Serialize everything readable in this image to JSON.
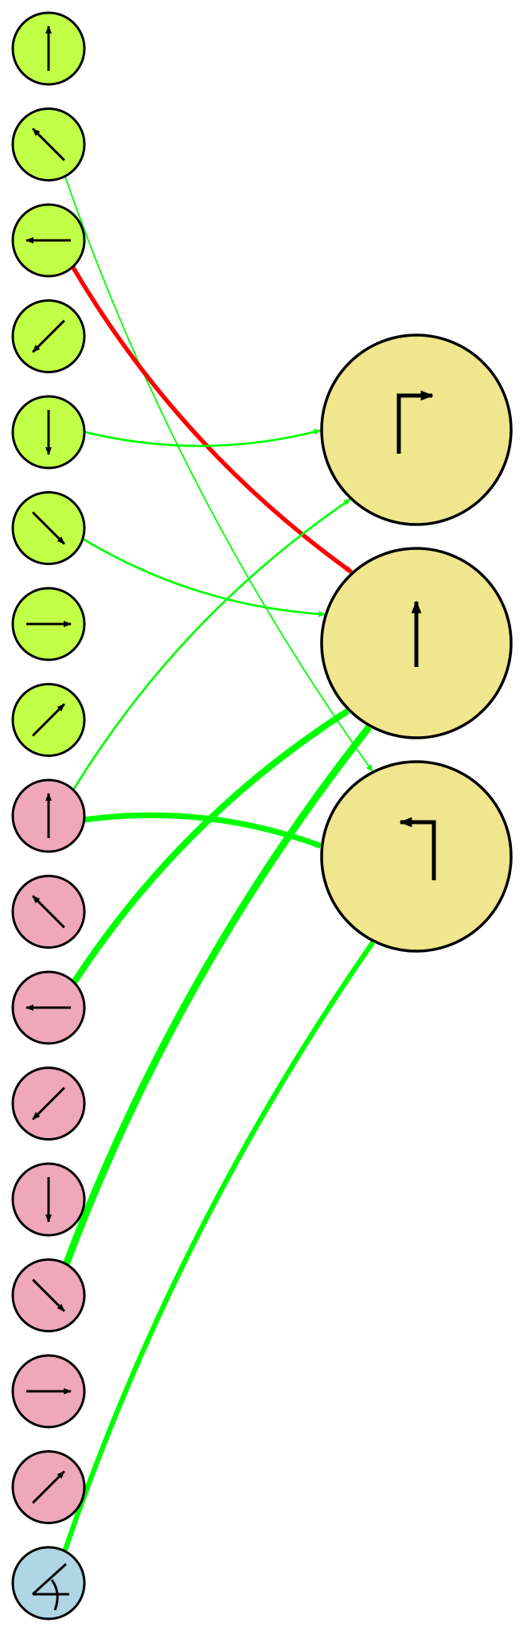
{
  "colors": {
    "background": "#ffffff",
    "input_direction": "#c2ff47",
    "input_pink": "#eea8b9",
    "input_blue": "#aed6e5",
    "output": "#efe68d",
    "stroke": "#000000",
    "edge_positive": "#00ff00",
    "edge_negative": "#ff0000"
  },
  "inputs": [
    {
      "id": "g0",
      "group": "direction",
      "icon": "arrow-up-icon"
    },
    {
      "id": "g1",
      "group": "direction",
      "icon": "arrow-up-left-icon"
    },
    {
      "id": "g2",
      "group": "direction",
      "icon": "arrow-left-icon"
    },
    {
      "id": "g3",
      "group": "direction",
      "icon": "arrow-down-left-icon"
    },
    {
      "id": "g4",
      "group": "direction",
      "icon": "arrow-down-icon"
    },
    {
      "id": "g5",
      "group": "direction",
      "icon": "arrow-down-right-icon"
    },
    {
      "id": "g6",
      "group": "direction",
      "icon": "arrow-right-icon"
    },
    {
      "id": "g7",
      "group": "direction",
      "icon": "arrow-up-right-icon"
    },
    {
      "id": "p0",
      "group": "pink",
      "icon": "arrow-up-icon"
    },
    {
      "id": "p1",
      "group": "pink",
      "icon": "arrow-up-left-icon"
    },
    {
      "id": "p2",
      "group": "pink",
      "icon": "arrow-left-icon"
    },
    {
      "id": "p3",
      "group": "pink",
      "icon": "arrow-down-left-icon"
    },
    {
      "id": "p4",
      "group": "pink",
      "icon": "arrow-down-icon"
    },
    {
      "id": "p5",
      "group": "pink",
      "icon": "arrow-down-right-icon"
    },
    {
      "id": "p6",
      "group": "pink",
      "icon": "arrow-right-icon"
    },
    {
      "id": "p7",
      "group": "pink",
      "icon": "arrow-up-right-icon"
    },
    {
      "id": "b0",
      "group": "blue",
      "icon": "angle-icon"
    }
  ],
  "outputs": [
    {
      "id": "o0",
      "icon": "turn-right-icon"
    },
    {
      "id": "o1",
      "icon": "straight-icon"
    },
    {
      "id": "o2",
      "icon": "turn-left-icon"
    }
  ],
  "edges": [
    {
      "from": "g1",
      "to": "o2",
      "sign": "positive",
      "weight": 1
    },
    {
      "from": "g2",
      "to": "o1",
      "sign": "negative",
      "weight": 3
    },
    {
      "from": "g4",
      "to": "o0",
      "sign": "positive",
      "weight": 1.5
    },
    {
      "from": "g5",
      "to": "o1",
      "sign": "positive",
      "weight": 1.5
    },
    {
      "from": "p0",
      "to": "o0",
      "sign": "positive",
      "weight": 1.5
    },
    {
      "from": "p0",
      "to": "o2",
      "sign": "positive",
      "weight": 4
    },
    {
      "from": "p2",
      "to": "o1",
      "sign": "positive",
      "weight": 4.5
    },
    {
      "from": "p5",
      "to": "o1",
      "sign": "positive",
      "weight": 5
    },
    {
      "from": "b0",
      "to": "o2",
      "sign": "positive",
      "weight": 3.5
    }
  ]
}
